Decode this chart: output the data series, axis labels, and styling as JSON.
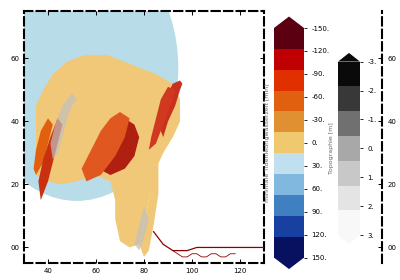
{
  "colorbar1_label": "minimale Tideniedrigwasserzeit [min]",
  "colorbar1_ticks": [
    150,
    120,
    90,
    60,
    30,
    0,
    -30,
    -60,
    -90,
    -120,
    -150
  ],
  "colorbar1_colors": [
    "#5a0010",
    "#c00000",
    "#e03000",
    "#e06010",
    "#e09030",
    "#f0c870",
    "#c0e0f0",
    "#80b8e0",
    "#4080c0",
    "#1840a0",
    "#081060"
  ],
  "colorbar2_label": "Topographie [m]",
  "colorbar2_ticks": [
    3,
    2,
    1,
    0,
    -1,
    -2,
    -3
  ],
  "colorbar2_colors": [
    "#0a0a0a",
    "#383838",
    "#707070",
    "#a8a8a8",
    "#c8c8c8",
    "#e4e4e4",
    "#f8f8f8"
  ],
  "water_color": "#b8dce8",
  "land_color": "#f0c878",
  "gray_color": "#c0c0c0",
  "red_color": "#c83020",
  "darkred_color": "#8b1010",
  "orange_color": "#e06010",
  "river_color": "#8b0000",
  "tick_labels_x": [
    "40",
    "60",
    "80",
    "100",
    "120"
  ],
  "tick_labels_y": [
    "00",
    "20",
    "40",
    "60"
  ],
  "figsize": [
    4.0,
    2.8
  ],
  "dpi": 100
}
